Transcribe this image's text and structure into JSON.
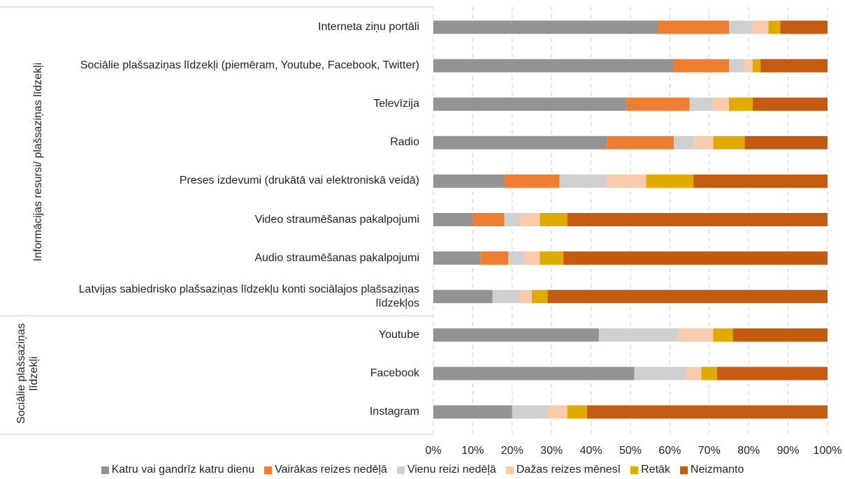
{
  "chart_data": {
    "type": "stacked-bar-horizontal",
    "groups": [
      {
        "name": "Informācijas resursi/ plašsaziņas līdzekļi",
        "categories": [
          "Interneta ziņu portāli",
          "Sociālie plašsaziņas līdzekļi (piemēram, Youtube, Facebook, Twitter)",
          "Televīzija",
          "Radio",
          "Preses izdevumi (drukātā vai elektroniskā veidā)",
          "Video straumēšanas pakalpojumi",
          "Audio straumēšanas pakalpojumi",
          "Latvijas sabiedrisko plašsaziņas līdzekļu konti sociālajos plašsaziņas līdzekļos"
        ]
      },
      {
        "name": "Sociālie plašsaziņas līdzekļi",
        "categories": [
          "Youtube",
          "Facebook",
          "Instagram"
        ]
      }
    ],
    "series": [
      {
        "name": "Katru vai gandrīz katru dienu",
        "color": "#939393",
        "values": [
          57,
          61,
          49,
          44,
          18,
          10,
          12,
          15,
          42,
          51,
          20
        ]
      },
      {
        "name": "Vairākas reizes nedēļā",
        "color": "#ed7d31",
        "values": [
          18,
          14,
          16,
          17,
          14,
          8,
          7,
          0,
          0,
          0,
          0
        ]
      },
      {
        "name": "Vienu reizi nedēļā",
        "color": "#d0d0d0",
        "values": [
          6,
          4,
          6,
          5,
          12,
          4,
          4,
          7,
          20,
          13,
          9
        ]
      },
      {
        "name": "Dažas reizes mēnesī",
        "color": "#f8cbad",
        "values": [
          4,
          2,
          4,
          5,
          10,
          5,
          4,
          3,
          9,
          4,
          5
        ]
      },
      {
        "name": "Retāk",
        "color": "#dfab00",
        "values": [
          3,
          2,
          6,
          8,
          12,
          7,
          6,
          4,
          5,
          4,
          5
        ]
      },
      {
        "name": "Neizmanto",
        "color": "#c55a11",
        "values": [
          12,
          17,
          19,
          21,
          34,
          66,
          67,
          71,
          24,
          28,
          61
        ]
      }
    ],
    "xlim": [
      0,
      100
    ],
    "xticks": [
      {
        "value": 0,
        "label": "0%"
      },
      {
        "value": 10,
        "label": "10%"
      },
      {
        "value": 20,
        "label": "20%"
      },
      {
        "value": 30,
        "label": "30%"
      },
      {
        "value": 40,
        "label": "40%"
      },
      {
        "value": 50,
        "label": "50%"
      },
      {
        "value": 60,
        "label": "60%"
      },
      {
        "value": 70,
        "label": "70%"
      },
      {
        "value": 80,
        "label": "80%"
      },
      {
        "value": 90,
        "label": "90%"
      },
      {
        "value": 100,
        "label": "100%"
      }
    ],
    "grid": true,
    "legend": "bottom"
  }
}
